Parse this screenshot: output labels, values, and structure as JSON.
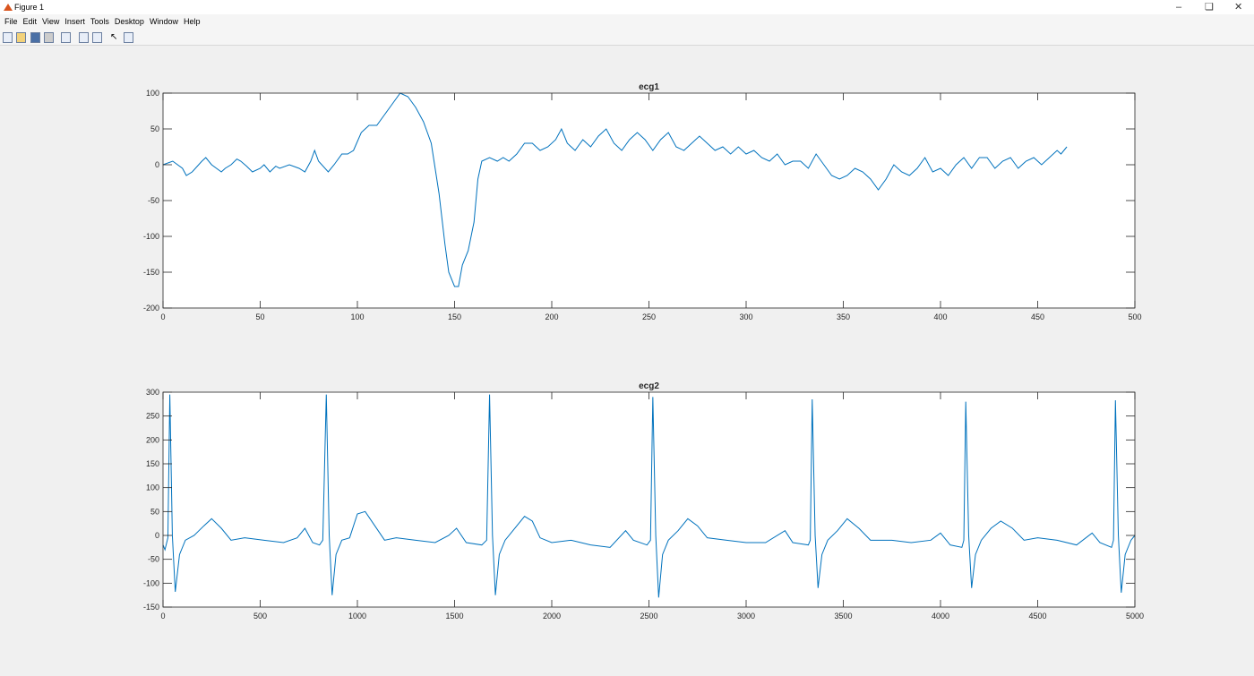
{
  "window": {
    "title": "Figure 1",
    "menu": [
      "File",
      "Edit",
      "View",
      "Insert",
      "Tools",
      "Desktop",
      "Window",
      "Help"
    ]
  },
  "chart_data": [
    {
      "type": "line",
      "title": "ecg1",
      "color": "#0072bd",
      "x": [
        0,
        5,
        10,
        12,
        15,
        20,
        22,
        25,
        30,
        32,
        35,
        38,
        40,
        43,
        46,
        50,
        52,
        55,
        58,
        60,
        65,
        70,
        73,
        76,
        78,
        80,
        85,
        88,
        92,
        95,
        98,
        102,
        106,
        110,
        114,
        118,
        122,
        126,
        130,
        134,
        138,
        142,
        145,
        147,
        150,
        152,
        154,
        157,
        160,
        162,
        164,
        168,
        172,
        175,
        178,
        182,
        186,
        190,
        194,
        198,
        202,
        205,
        208,
        212,
        216,
        220,
        224,
        228,
        232,
        236,
        240,
        244,
        248,
        252,
        256,
        260,
        264,
        268,
        272,
        276,
        280,
        284,
        288,
        292,
        296,
        300,
        304,
        308,
        312,
        316,
        320,
        324,
        328,
        332,
        336,
        340,
        344,
        348,
        352,
        356,
        360,
        364,
        368,
        372,
        376,
        380,
        384,
        388,
        392,
        396,
        400,
        404,
        408,
        412,
        416,
        420,
        424,
        428,
        432,
        436,
        440,
        444,
        448,
        452,
        456,
        460,
        462,
        465
      ],
      "values": [
        0,
        5,
        -5,
        -15,
        -10,
        5,
        10,
        0,
        -10,
        -5,
        0,
        8,
        5,
        -2,
        -10,
        -5,
        0,
        -10,
        -2,
        -5,
        0,
        -5,
        -10,
        5,
        20,
        5,
        -10,
        0,
        15,
        15,
        20,
        45,
        55,
        55,
        70,
        85,
        100,
        95,
        80,
        60,
        30,
        -40,
        -110,
        -150,
        -170,
        -170,
        -140,
        -120,
        -80,
        -20,
        5,
        10,
        5,
        10,
        5,
        15,
        30,
        30,
        20,
        25,
        35,
        50,
        30,
        20,
        35,
        25,
        40,
        50,
        30,
        20,
        35,
        45,
        35,
        20,
        35,
        45,
        25,
        20,
        30,
        40,
        30,
        20,
        25,
        15,
        25,
        15,
        20,
        10,
        5,
        15,
        0,
        5,
        5,
        -5,
        15,
        0,
        -15,
        -20,
        -15,
        -5,
        -10,
        -20,
        -35,
        -20,
        0,
        -10,
        -15,
        -5,
        10,
        -10,
        -5,
        -15,
        0,
        10,
        -5,
        10,
        10,
        -5,
        5,
        10,
        -5,
        5,
        10,
        0,
        10,
        20,
        15,
        25
      ],
      "xlim": [
        0,
        500
      ],
      "xticks": [
        0,
        50,
        100,
        150,
        200,
        250,
        300,
        350,
        400,
        450,
        500
      ],
      "ylim": [
        -200,
        100
      ],
      "yticks": [
        -200,
        -150,
        -100,
        -50,
        0,
        50,
        100
      ]
    },
    {
      "type": "line",
      "title": "ecg2",
      "color": "#0072bd",
      "x": [
        0,
        10,
        25,
        35,
        48,
        63,
        85,
        115,
        160,
        210,
        250,
        300,
        350,
        420,
        520,
        620,
        690,
        730,
        770,
        805,
        822,
        840,
        855,
        870,
        890,
        920,
        960,
        1000,
        1040,
        1090,
        1140,
        1200,
        1300,
        1400,
        1470,
        1510,
        1560,
        1640,
        1665,
        1680,
        1695,
        1710,
        1730,
        1760,
        1800,
        1860,
        1900,
        1940,
        2000,
        2100,
        2200,
        2300,
        2380,
        2420,
        2490,
        2508,
        2520,
        2535,
        2550,
        2570,
        2600,
        2650,
        2700,
        2750,
        2800,
        2900,
        3000,
        3100,
        3200,
        3240,
        3320,
        3330,
        3340,
        3355,
        3370,
        3390,
        3420,
        3470,
        3520,
        3580,
        3640,
        3750,
        3850,
        3950,
        4000,
        4050,
        4110,
        4120,
        4130,
        4145,
        4160,
        4180,
        4210,
        4260,
        4310,
        4370,
        4430,
        4500,
        4600,
        4700,
        4780,
        4820,
        4880,
        4890,
        4900,
        4915,
        4930,
        4950,
        4980,
        5000
      ],
      "values": [
        -20,
        -30,
        -5,
        295,
        0,
        -118,
        -40,
        -10,
        0,
        20,
        35,
        15,
        -10,
        -5,
        -10,
        -15,
        -5,
        15,
        -15,
        -20,
        -10,
        295,
        0,
        -125,
        -40,
        -10,
        -5,
        45,
        50,
        20,
        -10,
        -5,
        -10,
        -15,
        0,
        15,
        -15,
        -20,
        -10,
        295,
        0,
        -125,
        -40,
        -10,
        10,
        40,
        30,
        -5,
        -15,
        -10,
        -20,
        -25,
        10,
        -10,
        -20,
        -10,
        290,
        0,
        -130,
        -40,
        -10,
        10,
        35,
        20,
        -5,
        -10,
        -15,
        -15,
        10,
        -15,
        -20,
        -10,
        285,
        0,
        -110,
        -40,
        -10,
        10,
        35,
        15,
        -10,
        -10,
        -15,
        -10,
        5,
        -20,
        -25,
        -10,
        280,
        0,
        -110,
        -40,
        -10,
        15,
        30,
        15,
        -10,
        -5,
        -10,
        -20,
        5,
        -15,
        -25,
        -10,
        283,
        0,
        -120,
        -40,
        -10,
        0
      ],
      "xlim": [
        0,
        5000
      ],
      "xticks": [
        0,
        500,
        1000,
        1500,
        2000,
        2500,
        3000,
        3500,
        4000,
        4500,
        5000
      ],
      "ylim": [
        -150,
        300
      ],
      "yticks": [
        -150,
        -100,
        -50,
        0,
        50,
        100,
        150,
        200,
        250,
        300
      ]
    }
  ]
}
